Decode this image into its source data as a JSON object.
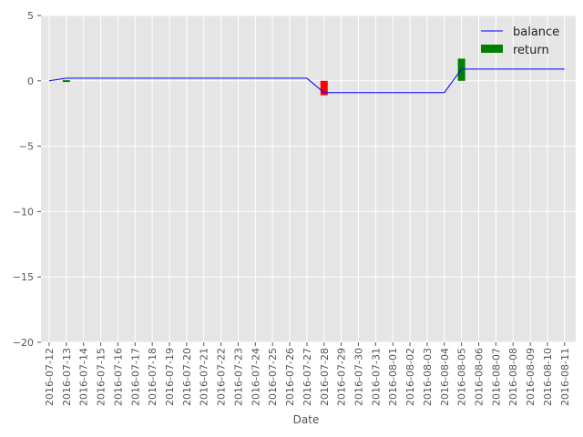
{
  "chart_data": {
    "type": "line",
    "title": "",
    "xlabel": "Date",
    "ylabel": "",
    "ylim": [
      -20,
      5
    ],
    "yticks": [
      5,
      0,
      -5,
      -10,
      -15,
      -20
    ],
    "ytick_labels": [
      "5",
      "0",
      "−5",
      "−10",
      "−15",
      "−20"
    ],
    "grid": true,
    "legend_position": "top-right",
    "x": [
      "2016-07-12",
      "2016-07-13",
      "2016-07-14",
      "2016-07-15",
      "2016-07-16",
      "2016-07-17",
      "2016-07-18",
      "2016-07-19",
      "2016-07-20",
      "2016-07-21",
      "2016-07-22",
      "2016-07-23",
      "2016-07-24",
      "2016-07-25",
      "2016-07-26",
      "2016-07-27",
      "2016-07-28",
      "2016-07-29",
      "2016-07-30",
      "2016-07-31",
      "2016-08-01",
      "2016-08-02",
      "2016-08-03",
      "2016-08-04",
      "2016-08-05",
      "2016-08-06",
      "2016-08-07",
      "2016-08-08",
      "2016-08-09",
      "2016-08-10",
      "2016-08-11"
    ],
    "series": [
      {
        "name": "balance",
        "kind": "line",
        "color": "#0000ff",
        "values": [
          0,
          0.2,
          0.2,
          0.2,
          0.2,
          0.2,
          0.2,
          0.2,
          0.2,
          0.2,
          0.2,
          0.2,
          0.2,
          0.2,
          0.2,
          0.2,
          -0.9,
          -0.9,
          -0.9,
          -0.9,
          -0.9,
          -0.9,
          -0.9,
          -0.9,
          0.9,
          0.9,
          0.9,
          0.9,
          0.9,
          0.9,
          0.9
        ]
      },
      {
        "name": "return",
        "kind": "bar",
        "color": "#008000",
        "negative_color": "#ff0000",
        "points": [
          {
            "x": "2016-07-13",
            "value": 0.05
          },
          {
            "x": "2016-07-28",
            "value": -1.1
          },
          {
            "x": "2016-08-05",
            "value": 1.7
          }
        ]
      }
    ]
  }
}
